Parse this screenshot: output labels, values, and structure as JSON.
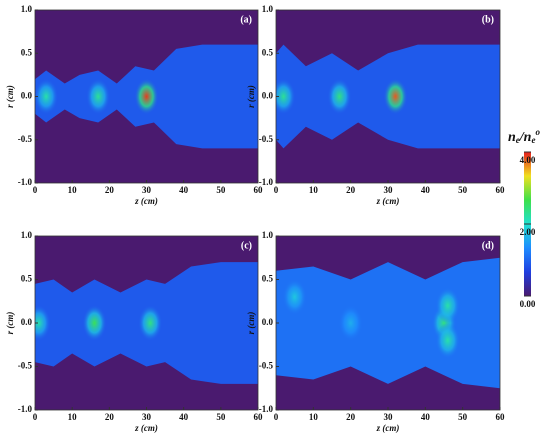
{
  "chart_data": [
    {
      "type": "heatmap",
      "panel_label": "(a)",
      "xlabel": "z (cm)",
      "ylabel": "r (cm)",
      "xlim": [
        0,
        60
      ],
      "ylim": [
        -1,
        1
      ],
      "xticks": [
        0,
        10,
        20,
        30,
        40,
        50,
        60
      ],
      "yticks": [
        {
          "value": -1,
          "label": "-1.0"
        },
        -0.5,
        {
          "value": 0,
          "label": "0.0"
        },
        0.5,
        {
          "value": 1,
          "label": "1.0"
        }
      ],
      "column_value": 0.9,
      "edge": {
        "z": [
          0,
          3,
          8,
          12,
          17,
          22,
          27,
          32,
          38,
          45,
          60
        ],
        "r": [
          0.2,
          0.3,
          0.15,
          0.25,
          0.3,
          0.15,
          0.35,
          0.3,
          0.55,
          0.6,
          0.6
        ]
      },
      "hotspots": {
        "z": [
          3,
          17,
          30
        ],
        "r": [
          0,
          0,
          0
        ],
        "values": [
          2.2,
          2.3,
          3.9
        ]
      }
    },
    {
      "type": "heatmap",
      "panel_label": "(b)",
      "xlabel": "z (cm)",
      "ylabel": "r (cm)",
      "xlim": [
        0,
        60
      ],
      "ylim": [
        -1,
        1
      ],
      "xticks": [
        0,
        10,
        20,
        30,
        40,
        50,
        60
      ],
      "yticks": [
        {
          "value": -1,
          "label": "-1.0"
        },
        -0.5,
        {
          "value": 0,
          "label": "0.0"
        },
        0.5,
        {
          "value": 1,
          "label": "1.0"
        }
      ],
      "column_value": 0.9,
      "edge": {
        "z": [
          0,
          2,
          8,
          15,
          22,
          30,
          38,
          45,
          60
        ],
        "r": [
          0.5,
          0.6,
          0.35,
          0.5,
          0.3,
          0.5,
          0.6,
          0.6,
          0.6
        ]
      },
      "hotspots": {
        "z": [
          2,
          17,
          32
        ],
        "r": [
          0,
          0,
          0
        ],
        "values": [
          2.3,
          2.4,
          3.8
        ]
      }
    },
    {
      "type": "heatmap",
      "panel_label": "(c)",
      "xlabel": "z (cm)",
      "ylabel": "r (cm)",
      "xlim": [
        0,
        60
      ],
      "ylim": [
        -1,
        1
      ],
      "xticks": [
        0,
        10,
        20,
        30,
        40,
        50,
        60
      ],
      "yticks": [
        {
          "value": -1,
          "label": "-1.0"
        },
        -0.5,
        {
          "value": 0,
          "label": "0.0"
        },
        0.5,
        {
          "value": 1,
          "label": "1.0"
        }
      ],
      "column_value": 0.9,
      "edge": {
        "z": [
          0,
          5,
          10,
          16,
          23,
          30,
          35,
          42,
          50,
          60
        ],
        "r": [
          0.45,
          0.5,
          0.35,
          0.5,
          0.35,
          0.5,
          0.45,
          0.65,
          0.7,
          0.7
        ]
      },
      "hotspots": {
        "z": [
          1,
          16,
          31
        ],
        "r": [
          0,
          0,
          0
        ],
        "values": [
          2.2,
          2.6,
          2.4
        ]
      }
    },
    {
      "type": "heatmap",
      "panel_label": "(d)",
      "xlabel": "z (cm)",
      "ylabel": "r (cm)",
      "xlim": [
        0,
        60
      ],
      "ylim": [
        -1,
        1
      ],
      "xticks": [
        0,
        10,
        20,
        30,
        40,
        50,
        60
      ],
      "yticks": [
        {
          "value": -1,
          "label": "-1.0"
        },
        -0.5,
        {
          "value": 0,
          "label": "0.0"
        },
        0.5,
        {
          "value": 1,
          "label": "1.0"
        }
      ],
      "column_value": 1.1,
      "edge": {
        "z": [
          0,
          10,
          20,
          30,
          40,
          45,
          50,
          60
        ],
        "r": [
          0.6,
          0.65,
          0.5,
          0.7,
          0.5,
          0.6,
          0.7,
          0.75
        ]
      },
      "hotspots": {
        "z": [
          45,
          46,
          46,
          5,
          20
        ],
        "r": [
          0,
          0.2,
          -0.2,
          0.3,
          0
        ],
        "values": [
          2.4,
          2.2,
          2.2,
          1.8,
          1.6
        ]
      }
    },
    {
      "type": "colorbar",
      "label_parts": [
        "n",
        "e",
        "/n",
        "e",
        "o"
      ],
      "clim": [
        0,
        4
      ],
      "cticks": [
        {
          "value": 0,
          "label": "0.00"
        },
        {
          "value": 2,
          "label": "2.00"
        },
        {
          "value": 4,
          "label": "4.00"
        }
      ],
      "colormap": [
        "#4a1a6f",
        "#1f3fe0",
        "#1e8cff",
        "#20e0d0",
        "#3ee04a",
        "#f0e020",
        "#e51e1e"
      ]
    }
  ]
}
